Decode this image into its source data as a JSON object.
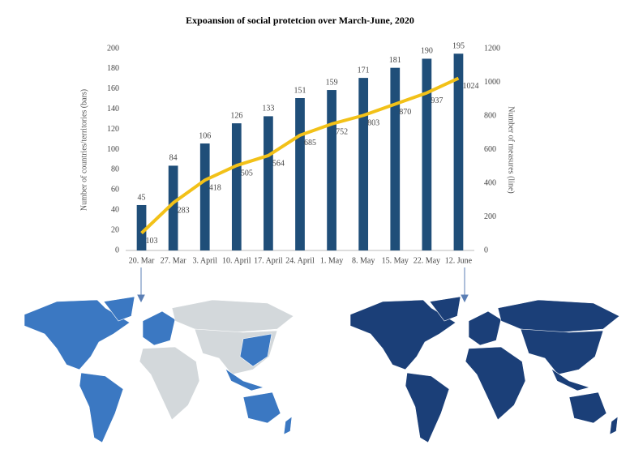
{
  "chart_data": {
    "type": "bar-line",
    "title": "Expoansion of social protetcion over March-June, 2020",
    "y_label": "Number of countries/territories (bars)",
    "y2_label": "Number of measures (line)",
    "categories": [
      "20. Mar",
      "27. Mar",
      "3. April",
      "10. April",
      "17. April",
      "24. April",
      "1. May",
      "8. May",
      "15. May",
      "22. May",
      "12. June"
    ],
    "series": [
      {
        "type": "bar",
        "color": "#1f4e79",
        "values": [
          45,
          84,
          106,
          126,
          133,
          151,
          159,
          171,
          181,
          190,
          195
        ]
      },
      {
        "type": "line",
        "axis": "y2",
        "color": "#f2c118",
        "values": [
          103,
          283,
          418,
          505,
          564,
          685,
          752,
          803,
          870,
          937,
          1024
        ]
      }
    ],
    "ylim": [
      0,
      200
    ],
    "yticks": [
      0,
      20,
      40,
      60,
      80,
      100,
      120,
      140,
      160,
      180,
      200
    ],
    "y2lim": [
      0,
      1200
    ],
    "y2ticks": [
      0,
      200,
      400,
      600,
      800,
      1000,
      1200
    ],
    "grid": false
  }
}
